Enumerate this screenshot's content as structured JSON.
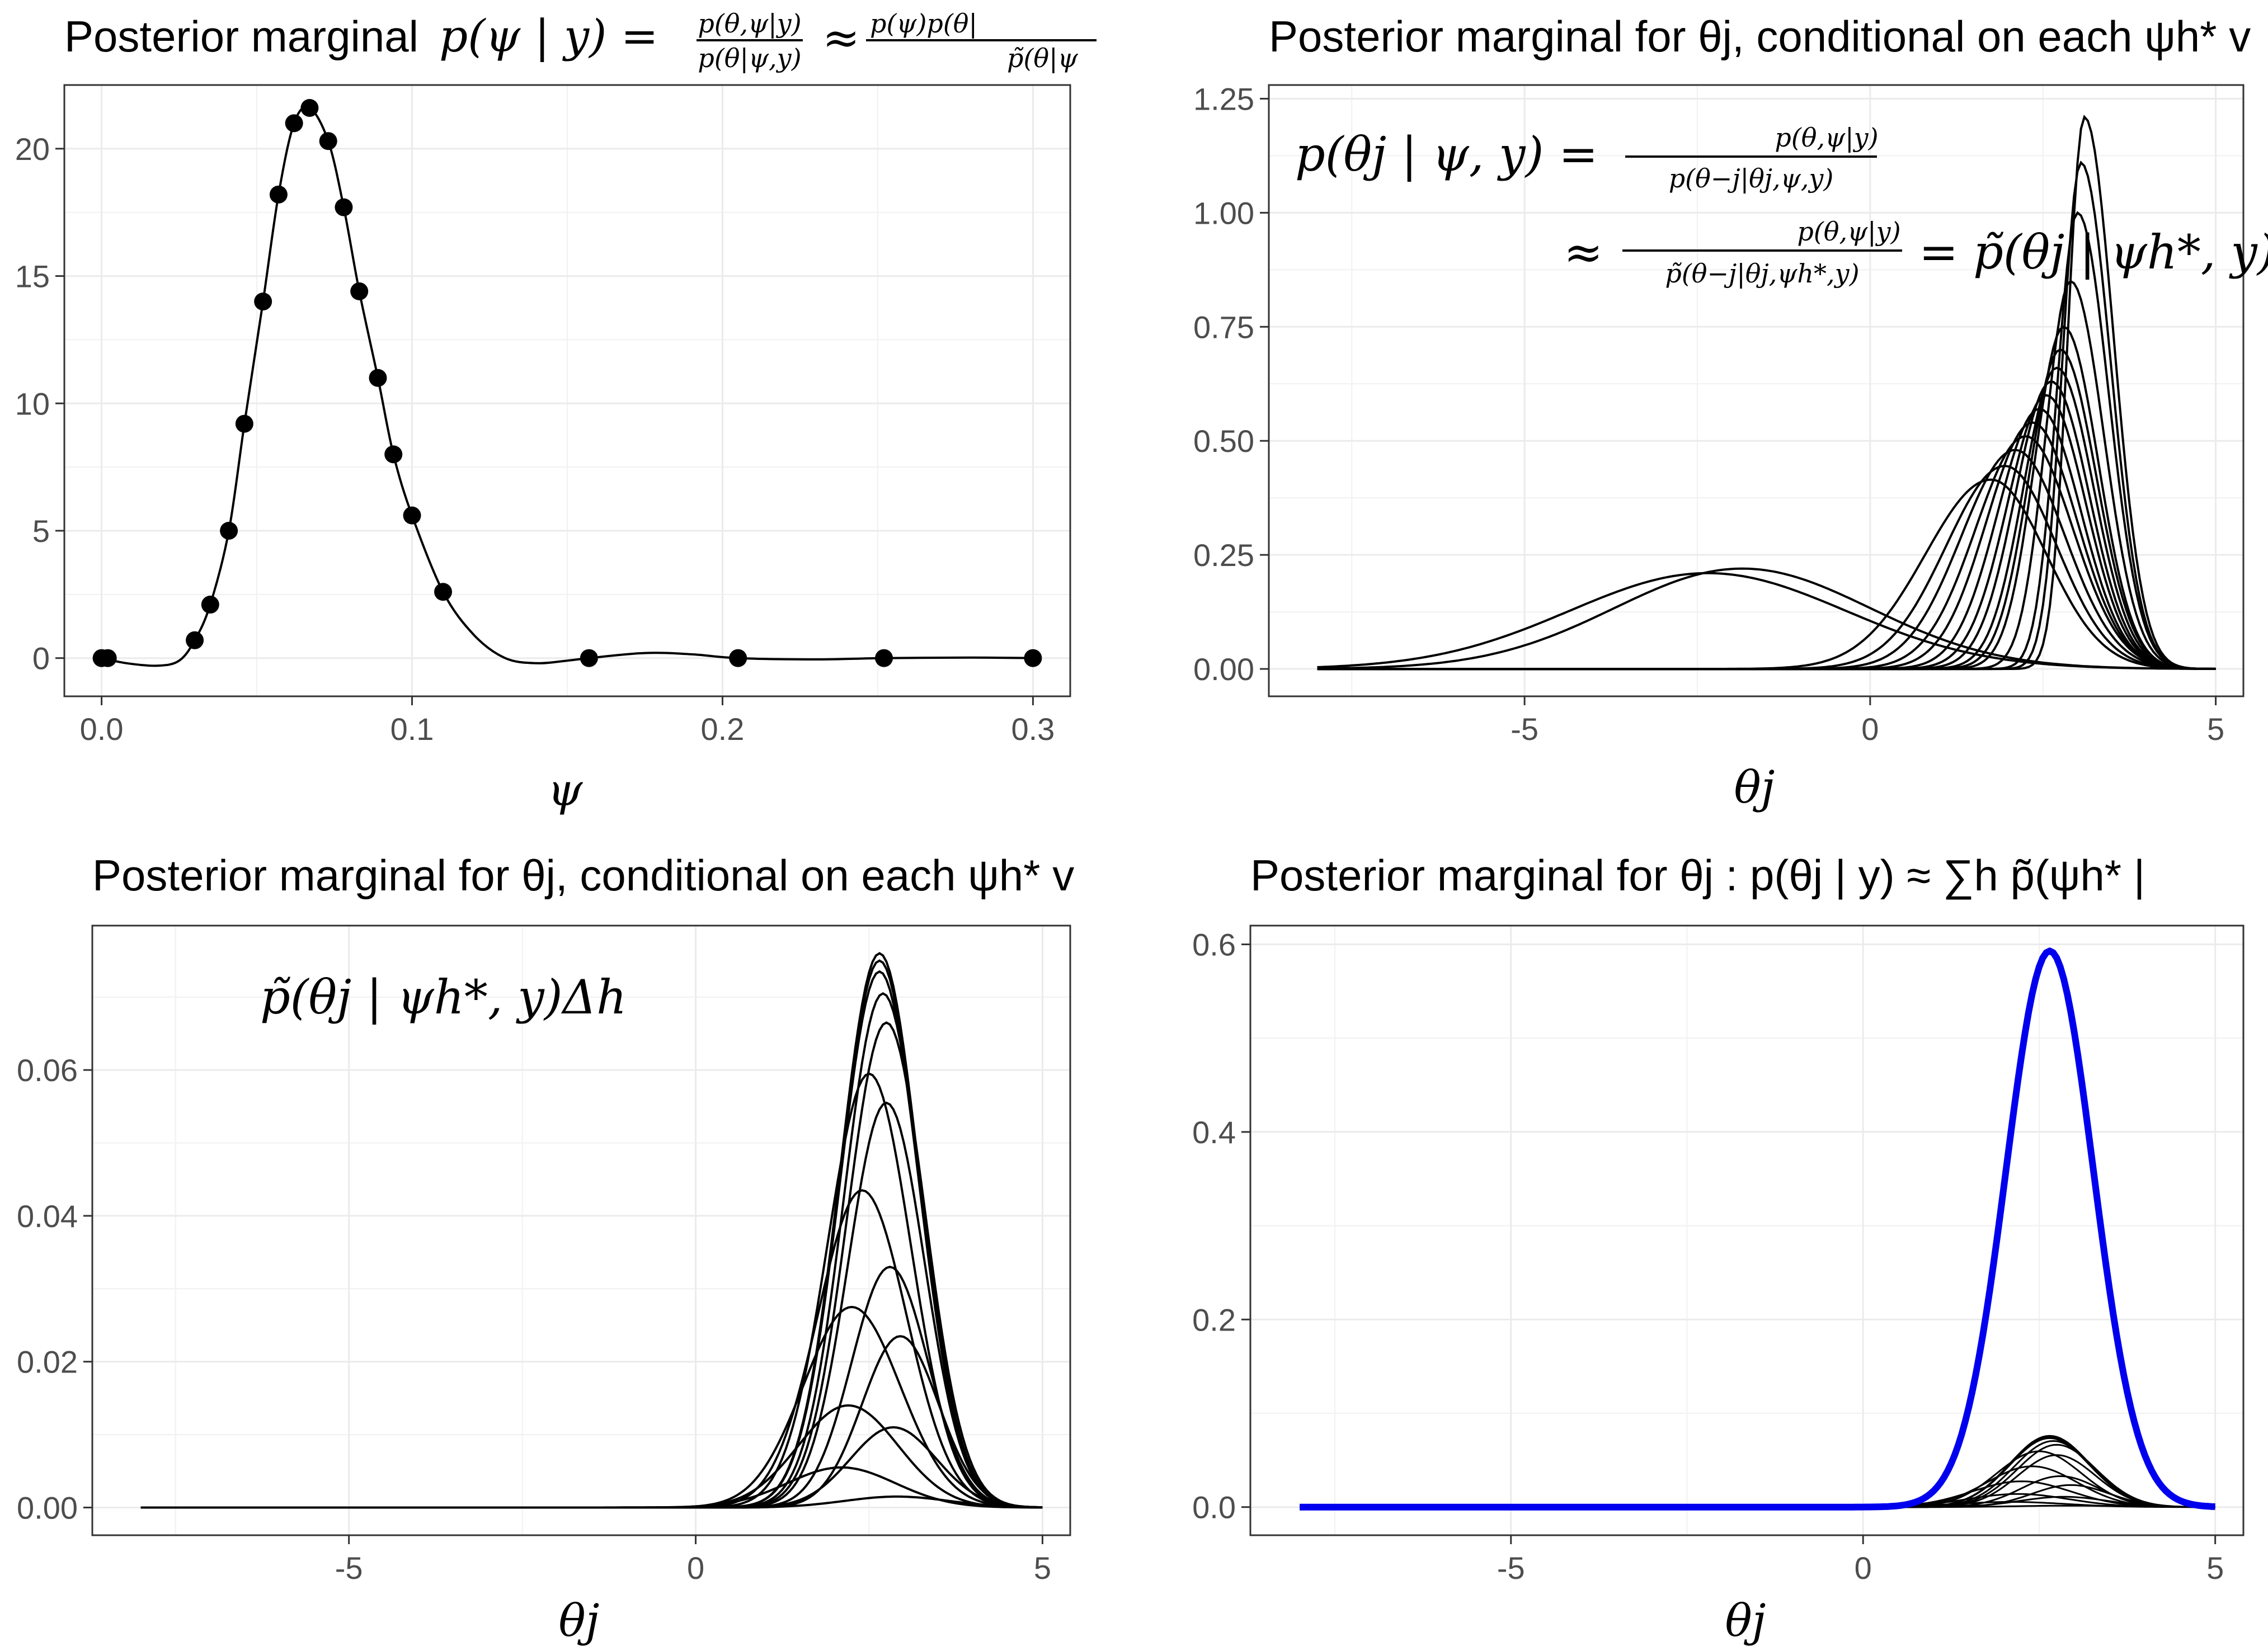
{
  "chart_data": [
    {
      "id": "p1",
      "type": "line",
      "title_text": "Posterior marginal",
      "title_math": "p(ψ | y) = ",
      "title_frac1_num": "p(θ,ψ|y)",
      "title_frac1_den": "p(θ|ψ,y)",
      "title_approx": "≈",
      "title_frac2_num": "p(ψ)p(θ|",
      "title_frac2_den": "p̃(θ|ψ",
      "xlabel": "ψ",
      "ylabel": "",
      "xlim": [
        -0.012,
        0.312
      ],
      "ylim": [
        -1.5,
        22.5
      ],
      "xticks": [
        0.0,
        0.1,
        0.2,
        0.3
      ],
      "xtick_labels": [
        "0.0",
        "0.1",
        "0.2",
        "0.3"
      ],
      "yticks": [
        0,
        5,
        10,
        15,
        20
      ],
      "ytick_labels": [
        "0",
        "5",
        "10",
        "15",
        "20"
      ],
      "grid": true,
      "points": {
        "x": [
          0.0,
          0.002,
          0.03,
          0.035,
          0.041,
          0.046,
          0.052,
          0.057,
          0.062,
          0.067,
          0.073,
          0.078,
          0.083,
          0.089,
          0.094,
          0.1,
          0.11,
          0.157,
          0.205,
          0.252,
          0.3
        ],
        "y": [
          0.0,
          0.0,
          0.7,
          2.1,
          5.0,
          9.2,
          14.0,
          18.2,
          21.0,
          21.6,
          20.3,
          17.7,
          14.4,
          11.0,
          8.0,
          5.6,
          2.6,
          0.0,
          0.0,
          0.0,
          0.0
        ]
      },
      "curve": {
        "x": [
          0.0,
          0.008,
          0.018,
          0.025,
          0.03,
          0.035,
          0.041,
          0.046,
          0.052,
          0.057,
          0.062,
          0.067,
          0.073,
          0.078,
          0.083,
          0.089,
          0.094,
          0.1,
          0.11,
          0.12,
          0.13,
          0.14,
          0.15,
          0.157,
          0.175,
          0.19,
          0.205,
          0.23,
          0.252,
          0.28,
          0.3
        ],
        "y": [
          0.0,
          -0.2,
          -0.3,
          -0.1,
          0.7,
          2.1,
          5.0,
          9.2,
          14.0,
          18.2,
          21.0,
          21.6,
          20.3,
          17.7,
          14.4,
          11.0,
          8.0,
          5.6,
          2.6,
          0.9,
          0.0,
          -0.2,
          -0.1,
          0.0,
          0.2,
          0.15,
          0.0,
          -0.05,
          0.0,
          0.02,
          0.0
        ]
      }
    },
    {
      "id": "p2",
      "type": "line",
      "title_text": "Posterior marginal for θj, conditional on each ψh* v",
      "xlabel": "θj",
      "ylabel": "",
      "xlim": [
        -8.7,
        5.4
      ],
      "ylim": [
        -0.06,
        1.28
      ],
      "xticks": [
        -5,
        0,
        5
      ],
      "xtick_labels": [
        "-5",
        "0",
        "5"
      ],
      "yticks": [
        0,
        0.25,
        0.5,
        0.75,
        1.0,
        1.25
      ],
      "ytick_labels": [
        "0.00",
        "0.25",
        "0.50",
        "0.75",
        "1.00",
        "1.25"
      ],
      "grid": true,
      "annotation_line1_lhs": "p(θj | ψ, y) =",
      "annotation_line1_num": "p(θ,ψ|y)",
      "annotation_line1_den": "p(θ−j|θj,ψ,y)",
      "annotation_line2_approx": "≈",
      "annotation_line2_num": "p(θ,ψ|y)",
      "annotation_line2_den": "p̃(θ−j|θj,ψh*,y)",
      "annotation_line2_rhs": "= p̃(θj | ψh*, y)",
      "domain": [
        -8,
        5
      ],
      "series": [
        {
          "mu": -2.35,
          "sigmaL": 2.0,
          "sigmaR": 2.0,
          "peak": 0.21
        },
        {
          "mu": -1.85,
          "sigmaL": 1.85,
          "sigmaR": 1.85,
          "peak": 0.22
        },
        {
          "mu": 1.75,
          "sigmaL": 0.95,
          "sigmaR": 0.8,
          "peak": 0.415
        },
        {
          "mu": 1.95,
          "sigmaL": 0.85,
          "sigmaR": 0.75,
          "peak": 0.445
        },
        {
          "mu": 2.1,
          "sigmaL": 0.78,
          "sigmaR": 0.72,
          "peak": 0.48
        },
        {
          "mu": 2.25,
          "sigmaL": 0.72,
          "sigmaR": 0.68,
          "peak": 0.51
        },
        {
          "mu": 2.35,
          "sigmaL": 0.66,
          "sigmaR": 0.64,
          "peak": 0.54
        },
        {
          "mu": 2.45,
          "sigmaL": 0.6,
          "sigmaR": 0.6,
          "peak": 0.57
        },
        {
          "mu": 2.55,
          "sigmaL": 0.56,
          "sigmaR": 0.57,
          "peak": 0.6
        },
        {
          "mu": 2.62,
          "sigmaL": 0.52,
          "sigmaR": 0.55,
          "peak": 0.63
        },
        {
          "mu": 2.7,
          "sigmaL": 0.48,
          "sigmaR": 0.53,
          "peak": 0.66
        },
        {
          "mu": 2.75,
          "sigmaL": 0.45,
          "sigmaR": 0.52,
          "peak": 0.7
        },
        {
          "mu": 2.8,
          "sigmaL": 0.42,
          "sigmaR": 0.5,
          "peak": 0.75
        },
        {
          "mu": 2.9,
          "sigmaL": 0.36,
          "sigmaR": 0.48,
          "peak": 0.85
        },
        {
          "mu": 3.0,
          "sigmaL": 0.3,
          "sigmaR": 0.45,
          "peak": 1.0
        },
        {
          "mu": 3.05,
          "sigmaL": 0.27,
          "sigmaR": 0.43,
          "peak": 1.11
        },
        {
          "mu": 3.1,
          "sigmaL": 0.24,
          "sigmaR": 0.42,
          "peak": 1.21
        }
      ]
    },
    {
      "id": "p3",
      "type": "line",
      "title_text": "Posterior marginal for θj, conditional on each ψh* v",
      "xlabel": "θj",
      "ylabel": "",
      "xlim": [
        -8.7,
        5.4
      ],
      "ylim": [
        -0.0038,
        0.0798
      ],
      "xticks": [
        -5,
        0,
        5
      ],
      "xtick_labels": [
        "-5",
        "0",
        "5"
      ],
      "yticks": [
        0.0,
        0.02,
        0.04,
        0.06
      ],
      "ytick_labels": [
        "0.00",
        "0.02",
        "0.04",
        "0.06"
      ],
      "grid": true,
      "annotation": "p̃(θj | ψh*, y)Δh",
      "domain": [
        -8,
        5
      ],
      "series": [
        {
          "mu": 2.9,
          "sigma": 0.75,
          "peak": 0.0015
        },
        {
          "mu": 2.1,
          "sigma": 0.78,
          "peak": 0.0055
        },
        {
          "mu": 2.85,
          "sigma": 0.62,
          "peak": 0.011
        },
        {
          "mu": 2.2,
          "sigma": 0.72,
          "peak": 0.014
        },
        {
          "mu": 2.95,
          "sigma": 0.55,
          "peak": 0.0235
        },
        {
          "mu": 2.25,
          "sigma": 0.7,
          "peak": 0.0275
        },
        {
          "mu": 2.8,
          "sigma": 0.55,
          "peak": 0.033
        },
        {
          "mu": 2.4,
          "sigma": 0.64,
          "peak": 0.0435
        },
        {
          "mu": 2.75,
          "sigma": 0.55,
          "peak": 0.0555
        },
        {
          "mu": 2.5,
          "sigma": 0.6,
          "peak": 0.0595
        },
        {
          "mu": 2.75,
          "sigma": 0.56,
          "peak": 0.0665
        },
        {
          "mu": 2.7,
          "sigma": 0.56,
          "peak": 0.0705
        },
        {
          "mu": 2.65,
          "sigma": 0.57,
          "peak": 0.0735
        },
        {
          "mu": 2.65,
          "sigma": 0.57,
          "peak": 0.075
        },
        {
          "mu": 2.65,
          "sigma": 0.57,
          "peak": 0.076
        }
      ]
    },
    {
      "id": "p4",
      "type": "line",
      "title_text": "Posterior marginal for θj : p(θj | y) ≈ ∑h p̃(ψh* |",
      "xlabel": "θj",
      "ylabel": "",
      "xlim": [
        -8.7,
        5.4
      ],
      "ylim": [
        -0.03,
        0.62
      ],
      "xticks": [
        -5,
        0,
        5
      ],
      "xtick_labels": [
        "-5",
        "0",
        "5"
      ],
      "yticks": [
        0.0,
        0.2,
        0.4,
        0.6
      ],
      "ytick_labels": [
        "0.0",
        "0.2",
        "0.4",
        "0.6"
      ],
      "grid": true,
      "domain": [
        -8,
        5
      ],
      "sum_series": {
        "mu": 2.65,
        "sigma": 0.62,
        "peak": 0.593,
        "color": "#0000ee"
      },
      "series": [
        {
          "mu": 2.9,
          "sigma": 0.75,
          "peak": 0.0015
        },
        {
          "mu": 2.1,
          "sigma": 0.78,
          "peak": 0.0055
        },
        {
          "mu": 2.85,
          "sigma": 0.62,
          "peak": 0.011
        },
        {
          "mu": 2.2,
          "sigma": 0.72,
          "peak": 0.014
        },
        {
          "mu": 2.95,
          "sigma": 0.55,
          "peak": 0.0235
        },
        {
          "mu": 2.25,
          "sigma": 0.7,
          "peak": 0.0275
        },
        {
          "mu": 2.8,
          "sigma": 0.55,
          "peak": 0.033
        },
        {
          "mu": 2.4,
          "sigma": 0.64,
          "peak": 0.0435
        },
        {
          "mu": 2.75,
          "sigma": 0.55,
          "peak": 0.0555
        },
        {
          "mu": 2.5,
          "sigma": 0.6,
          "peak": 0.0595
        },
        {
          "mu": 2.75,
          "sigma": 0.56,
          "peak": 0.0665
        },
        {
          "mu": 2.7,
          "sigma": 0.56,
          "peak": 0.0705
        },
        {
          "mu": 2.65,
          "sigma": 0.57,
          "peak": 0.0735
        },
        {
          "mu": 2.65,
          "sigma": 0.57,
          "peak": 0.075
        },
        {
          "mu": 2.65,
          "sigma": 0.57,
          "peak": 0.076
        }
      ]
    }
  ]
}
